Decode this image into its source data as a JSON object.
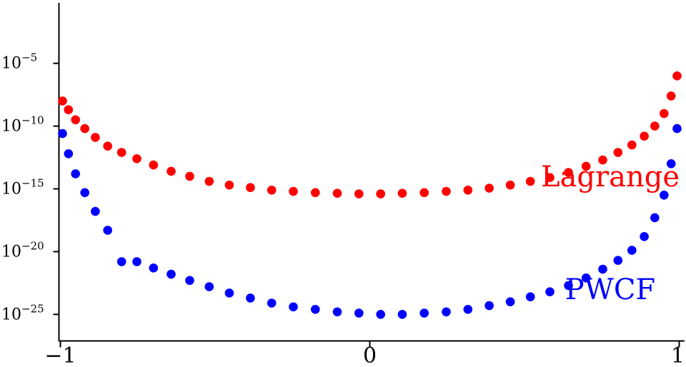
{
  "chart_data": {
    "type": "scatter",
    "title": "",
    "xlabel": "",
    "ylabel": "",
    "xlim": [
      -1,
      1
    ],
    "ylim_log10": [
      -27.5,
      5
    ],
    "yscale": "log",
    "grid": false,
    "x_ticks": [
      {
        "value": -1,
        "label": "−1"
      },
      {
        "value": 0,
        "label": "0"
      },
      {
        "value": 1,
        "label": "1"
      }
    ],
    "y_ticks": [
      {
        "exponent": -5,
        "base": "10",
        "exp_label": "−5"
      },
      {
        "exponent": -10,
        "base": "10",
        "exp_label": "−10"
      },
      {
        "exponent": -15,
        "base": "10",
        "exp_label": "−15"
      },
      {
        "exponent": -20,
        "base": "10",
        "exp_label": "−20"
      },
      {
        "exponent": -25,
        "base": "10",
        "exp_label": "−25"
      }
    ],
    "series": [
      {
        "name": "Lagrange",
        "color": "#ff0000",
        "label_position": {
          "x": 0.5,
          "y_log10": -14
        },
        "x": [
          -0.993,
          -0.974,
          -0.951,
          -0.921,
          -0.887,
          -0.847,
          -0.802,
          -0.753,
          -0.699,
          -0.642,
          -0.582,
          -0.519,
          -0.454,
          -0.386,
          -0.317,
          -0.247,
          -0.176,
          -0.105,
          -0.035,
          0.035,
          0.105,
          0.176,
          0.247,
          0.317,
          0.386,
          0.454,
          0.519,
          0.582,
          0.642,
          0.699,
          0.753,
          0.802,
          0.847,
          0.887,
          0.921,
          0.951,
          0.974,
          0.993
        ],
        "y_log10": [
          -8.0,
          -8.7,
          -9.5,
          -10.2,
          -10.9,
          -11.6,
          -12.1,
          -12.6,
          -13.1,
          -13.6,
          -14.0,
          -14.4,
          -14.7,
          -14.9,
          -15.1,
          -15.2,
          -15.3,
          -15.35,
          -15.4,
          -15.4,
          -15.35,
          -15.3,
          -15.2,
          -15.1,
          -14.95,
          -14.7,
          -14.4,
          -14.1,
          -13.7,
          -13.2,
          -12.7,
          -12.1,
          -11.5,
          -10.8,
          -10.0,
          -9.0,
          -7.6,
          -6.0
        ]
      },
      {
        "name": "PWCF",
        "color": "#0000ff",
        "label_position": {
          "x": 0.5,
          "y_log10": -23
        },
        "x": [
          -0.993,
          -0.974,
          -0.951,
          -0.921,
          -0.887,
          -0.847,
          -0.802,
          -0.753,
          -0.699,
          -0.642,
          -0.582,
          -0.519,
          -0.454,
          -0.386,
          -0.317,
          -0.247,
          -0.176,
          -0.105,
          -0.035,
          0.035,
          0.105,
          0.176,
          0.247,
          0.317,
          0.386,
          0.454,
          0.519,
          0.582,
          0.642,
          0.699,
          0.753,
          0.802,
          0.847,
          0.887,
          0.921,
          0.951,
          0.974,
          0.993
        ],
        "y_log10": [
          -10.6,
          -12.2,
          -13.8,
          -15.3,
          -16.8,
          -18.3,
          -20.8,
          -20.8,
          -21.3,
          -21.8,
          -22.3,
          -22.8,
          -23.3,
          -23.7,
          -24.1,
          -24.4,
          -24.6,
          -24.8,
          -24.9,
          -25.0,
          -25.0,
          -24.9,
          -24.8,
          -24.6,
          -24.3,
          -24.0,
          -23.6,
          -23.2,
          -22.7,
          -22.1,
          -21.4,
          -20.7,
          -19.9,
          -18.8,
          -17.3,
          -15.5,
          -13.0,
          -10.2
        ]
      }
    ]
  }
}
